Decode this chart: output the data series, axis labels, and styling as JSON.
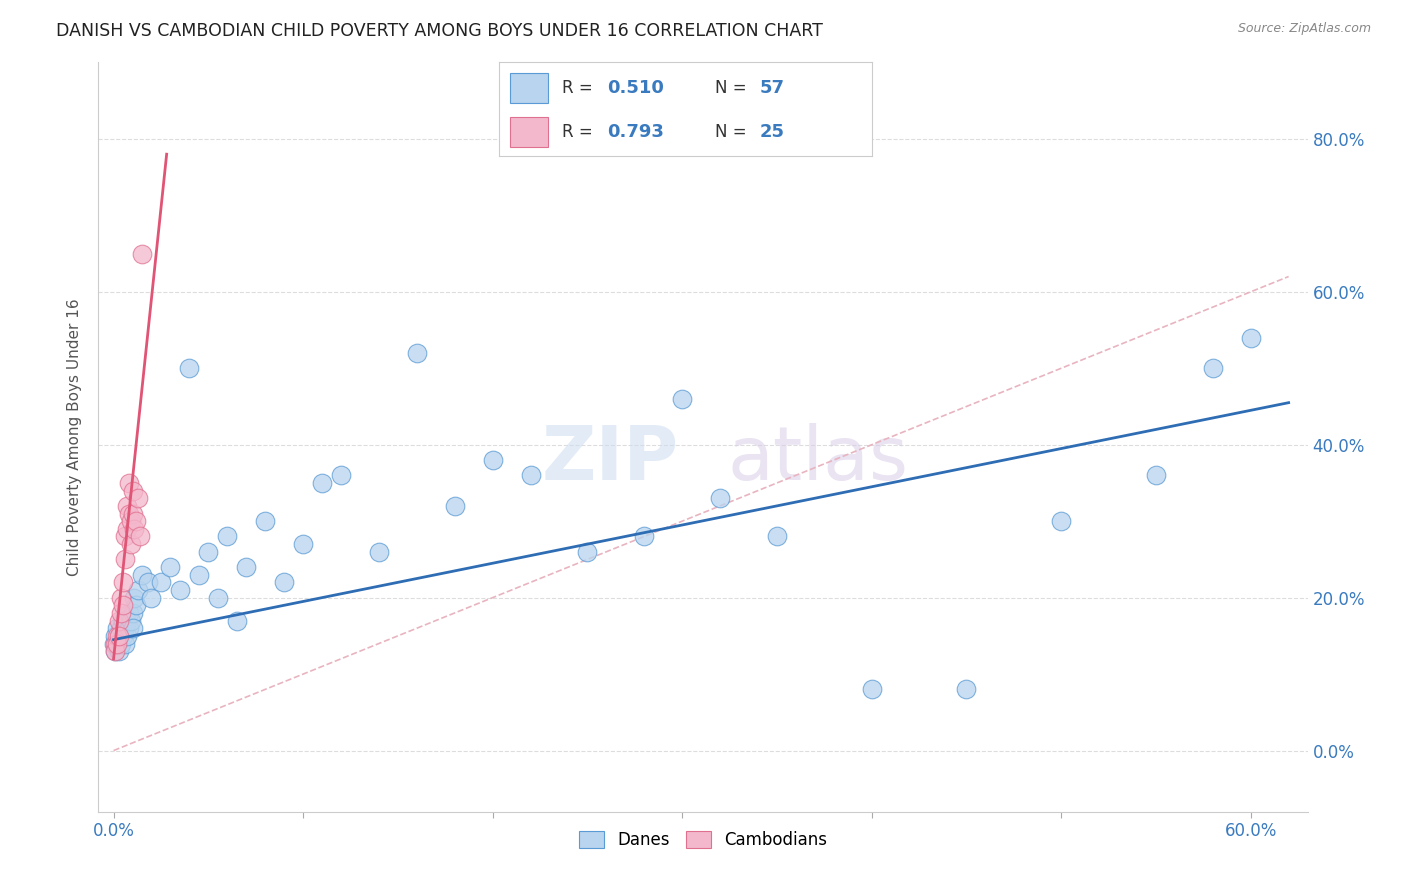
{
  "title": "DANISH VS CAMBODIAN CHILD POVERTY AMONG BOYS UNDER 16 CORRELATION CHART",
  "source": "Source: ZipAtlas.com",
  "ylabel": "Child Poverty Among Boys Under 16",
  "xlim": [
    -0.008,
    0.63
  ],
  "ylim": [
    -0.08,
    0.9
  ],
  "xtick_positions": [
    0.0,
    0.1,
    0.2,
    0.3,
    0.4,
    0.5,
    0.6
  ],
  "ytick_positions": [
    0.0,
    0.2,
    0.4,
    0.6,
    0.8
  ],
  "background_color": "#ffffff",
  "danes_color": "#b8d4ee",
  "danes_edge_color": "#5b9bd5",
  "cambodians_color": "#f4b8cc",
  "cambodians_edge_color": "#e07090",
  "danes_R": 0.51,
  "danes_N": 57,
  "cambodians_R": 0.793,
  "cambodians_N": 25,
  "danes_line_color": "#2e6db4",
  "cambodians_line_color": "#e05575",
  "ref_line_color": "#e8b4c0",
  "danes_trendline_x0": 0.0,
  "danes_trendline_x1": 0.62,
  "danes_trendline_y0": 0.145,
  "danes_trendline_y1": 0.455,
  "cambodians_trendline_x0": 0.0,
  "cambodians_trendline_x1": 0.028,
  "cambodians_trendline_y0": 0.12,
  "cambodians_trendline_y1": 0.78,
  "danes_x": [
    0.0,
    0.001,
    0.001,
    0.002,
    0.002,
    0.003,
    0.003,
    0.004,
    0.004,
    0.005,
    0.005,
    0.006,
    0.006,
    0.007,
    0.007,
    0.008,
    0.008,
    0.009,
    0.01,
    0.01,
    0.011,
    0.012,
    0.013,
    0.015,
    0.018,
    0.02,
    0.025,
    0.03,
    0.035,
    0.04,
    0.045,
    0.05,
    0.055,
    0.06,
    0.065,
    0.07,
    0.08,
    0.09,
    0.1,
    0.11,
    0.12,
    0.14,
    0.16,
    0.18,
    0.2,
    0.22,
    0.25,
    0.28,
    0.3,
    0.32,
    0.35,
    0.4,
    0.45,
    0.5,
    0.55,
    0.58,
    0.6
  ],
  "danes_y": [
    0.14,
    0.15,
    0.13,
    0.14,
    0.16,
    0.15,
    0.13,
    0.16,
    0.14,
    0.17,
    0.15,
    0.14,
    0.16,
    0.15,
    0.17,
    0.16,
    0.18,
    0.17,
    0.18,
    0.16,
    0.2,
    0.19,
    0.21,
    0.23,
    0.22,
    0.2,
    0.22,
    0.24,
    0.21,
    0.5,
    0.23,
    0.26,
    0.2,
    0.28,
    0.17,
    0.24,
    0.3,
    0.22,
    0.27,
    0.35,
    0.36,
    0.26,
    0.52,
    0.32,
    0.38,
    0.36,
    0.26,
    0.28,
    0.46,
    0.33,
    0.28,
    0.08,
    0.08,
    0.3,
    0.36,
    0.5,
    0.54
  ],
  "cambodians_x": [
    0.001,
    0.001,
    0.002,
    0.002,
    0.003,
    0.003,
    0.004,
    0.004,
    0.005,
    0.005,
    0.006,
    0.006,
    0.007,
    0.007,
    0.008,
    0.008,
    0.009,
    0.009,
    0.01,
    0.01,
    0.011,
    0.012,
    0.013,
    0.014,
    0.015
  ],
  "cambodians_y": [
    0.14,
    0.13,
    0.15,
    0.14,
    0.17,
    0.15,
    0.2,
    0.18,
    0.22,
    0.19,
    0.28,
    0.25,
    0.32,
    0.29,
    0.35,
    0.31,
    0.27,
    0.3,
    0.34,
    0.31,
    0.29,
    0.3,
    0.33,
    0.28,
    0.65
  ]
}
